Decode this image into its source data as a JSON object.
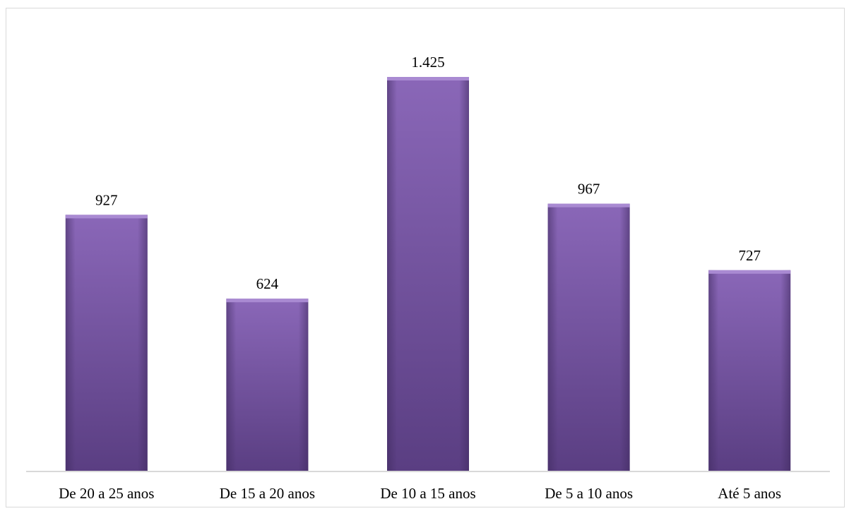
{
  "chart_data": {
    "type": "bar",
    "categories": [
      "De 20 a 25 anos",
      "De 15 a 20 anos",
      "De 10 a 15 anos",
      "De 5 a 10 anos",
      "Até 5 anos"
    ],
    "values": [
      927,
      624,
      1425,
      967,
      727
    ],
    "value_labels": [
      "927",
      "624",
      "1.425",
      "967",
      "727"
    ],
    "bar_color": "#7b59a8",
    "grid": false,
    "legend": "none"
  }
}
